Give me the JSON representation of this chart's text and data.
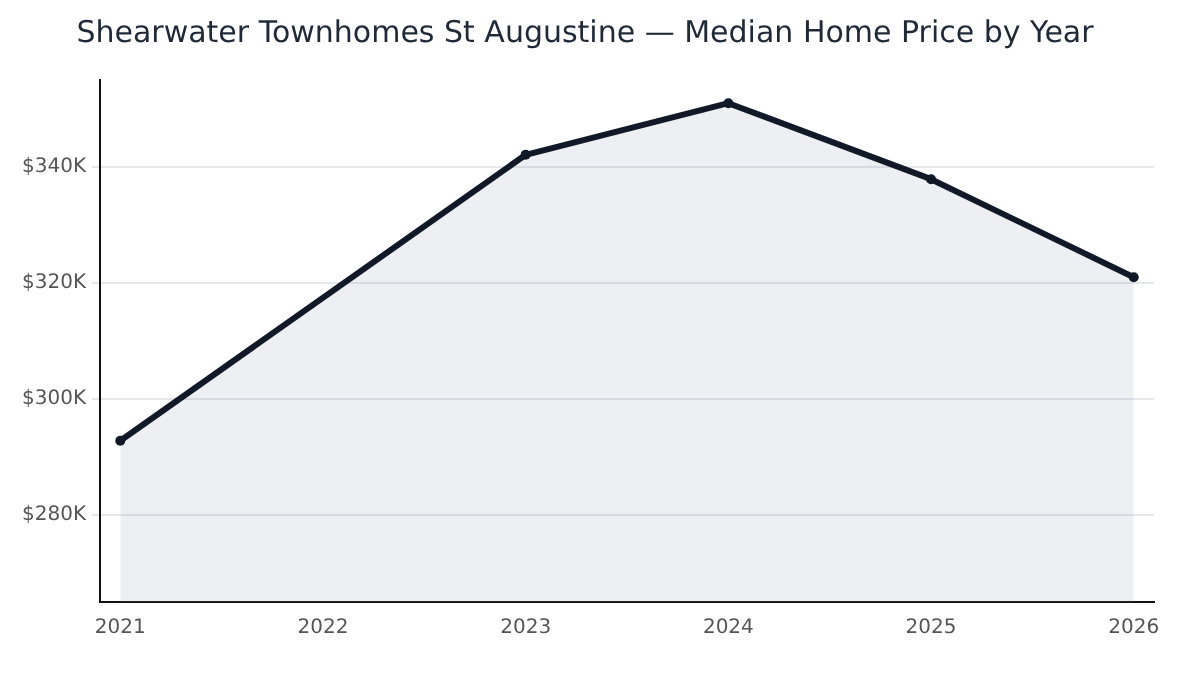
{
  "chart_data": {
    "type": "area",
    "title": "Shearwater Townhomes St Augustine — Median Home Price by Year",
    "x": [
      2021,
      2023,
      2024,
      2025,
      2026
    ],
    "series": [
      {
        "color": "#111827",
        "values": [
          292.8,
          342.1,
          351,
          337.9,
          321
        ]
      }
    ],
    "xlim": [
      2020.9,
      2026.1
    ],
    "xticks": [
      2021,
      2022,
      2023,
      2024,
      2025,
      2026
    ],
    "ylim": [
      265,
      355
    ],
    "yticks": [
      {
        "value": 280,
        "label": "$280K"
      },
      {
        "value": 300,
        "label": "$300K"
      },
      {
        "value": 320,
        "label": "$320K"
      },
      {
        "value": 340,
        "label": "$340K"
      }
    ],
    "grid": "y",
    "marker": "circle",
    "line_style": "solid",
    "legend": false
  }
}
